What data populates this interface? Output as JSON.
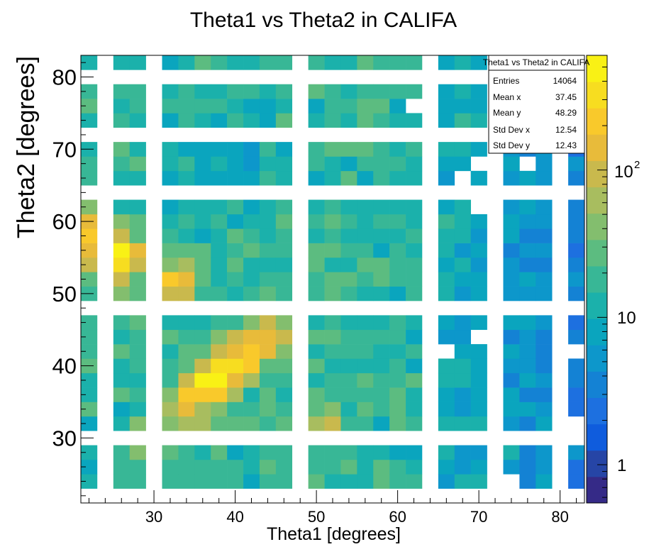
{
  "chart_data": {
    "type": "heatmap",
    "title": "Theta1 vs Theta2 in CALIFA",
    "xlabel": "Theta1 [degrees]",
    "ylabel": "Theta2 [degrees]",
    "xlim": [
      21,
      83
    ],
    "ylim": [
      21,
      83
    ],
    "bin_width": 2,
    "x_ticks": [
      30,
      40,
      50,
      60,
      70,
      80
    ],
    "y_ticks": [
      30,
      40,
      50,
      60,
      70,
      80
    ],
    "x_tick_labels": [
      "30",
      "40",
      "50",
      "60",
      "70",
      "80"
    ],
    "y_tick_labels": [
      "30",
      "40",
      "50",
      "60",
      "70",
      "80"
    ],
    "color_scale": {
      "type": "log",
      "min": 0.55,
      "max": 600,
      "tick_labels": [
        "1",
        "10",
        "10",
        "2"
      ],
      "palette": [
        "#352a87",
        "#2645a6",
        "#0f5cdd",
        "#1d70e0",
        "#1482d4",
        "#0d97cb",
        "#0aa5be",
        "#1bb1ab",
        "#38b796",
        "#5cbc80",
        "#83be6e",
        "#a8bd5f",
        "#c9b94d",
        "#e8bb3a",
        "#f9c92b",
        "#f7dd20",
        "#f9f115"
      ]
    },
    "empty_bins": {
      "x_centers": [
        24,
        30,
        48,
        64,
        72,
        80
      ],
      "y_centers": [
        80,
        72,
        64,
        48,
        30,
        22
      ]
    },
    "grid": false,
    "stats_box": {
      "title": "Theta1 vs Theta2 in CALIFA",
      "rows": [
        {
          "label": "Entries",
          "value": "14064"
        },
        {
          "label": "Mean x",
          "value": "37.45"
        },
        {
          "label": "Mean y",
          "value": "48.29"
        },
        {
          "label": "Std Dev x",
          "value": "12.54"
        },
        {
          "label": "Std Dev y",
          "value": "12.43"
        }
      ],
      "position": "top-right"
    }
  }
}
